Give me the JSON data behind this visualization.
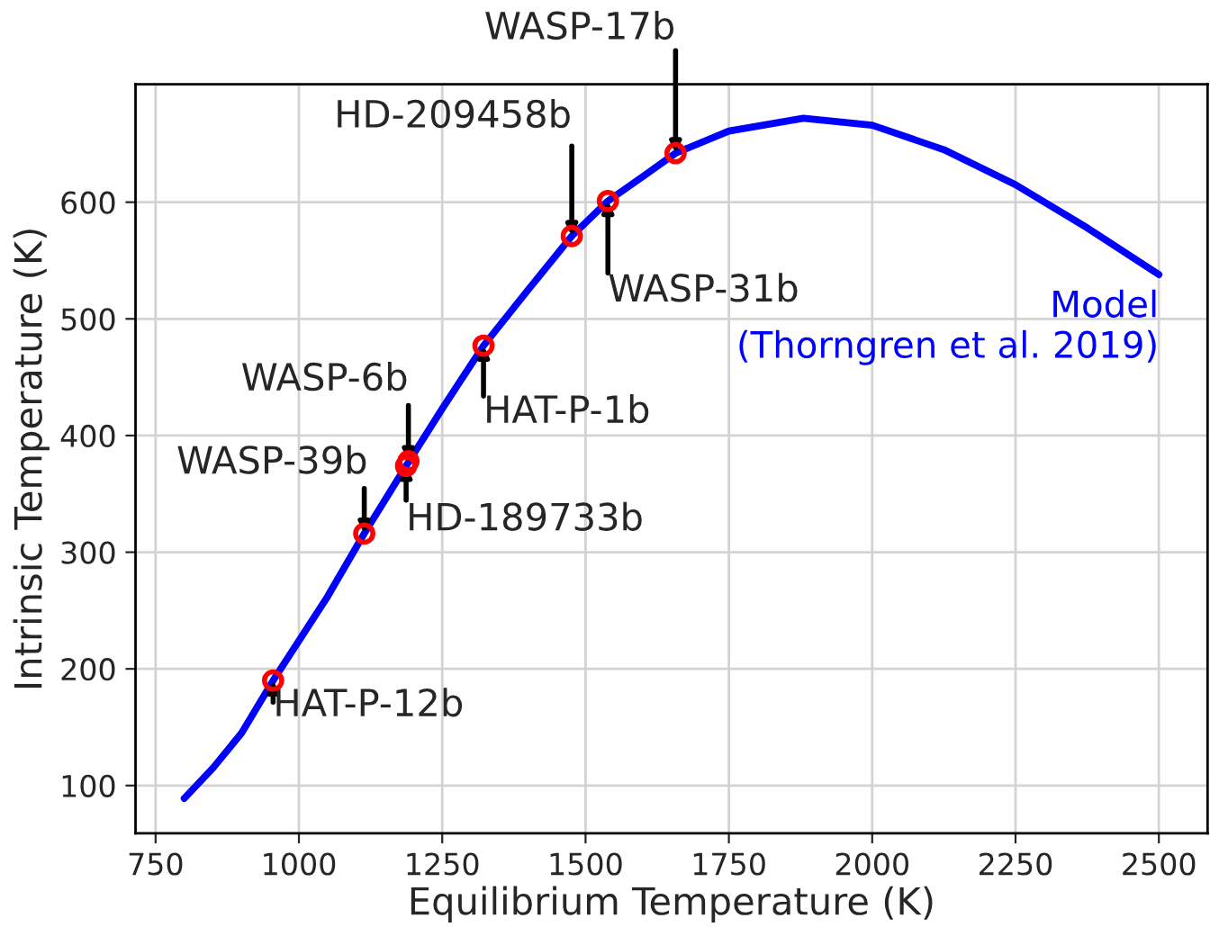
{
  "chart_data": {
    "type": "line",
    "xlabel": "Equilibrium Temperature (K)",
    "ylabel": "Intrinsic Temperature (K)",
    "xlim": [
      715,
      2585
    ],
    "ylim": [
      59,
      701
    ],
    "xticks": [
      750,
      1000,
      1250,
      1500,
      1750,
      2000,
      2250,
      2500
    ],
    "yticks": [
      100,
      200,
      300,
      400,
      500,
      600
    ],
    "grid": true,
    "series": [
      {
        "name": "Model\n(Thorngren et al. 2019)",
        "color": "#0000ff",
        "marker": "none",
        "x": [
          800,
          850,
          900,
          955,
          1050,
          1114,
          1187,
          1250,
          1322,
          1400,
          1476,
          1539,
          1600,
          1657,
          1750,
          1880,
          2000,
          2125,
          2250,
          2375,
          2500
        ],
        "values": [
          89,
          115,
          145,
          190,
          262,
          316,
          374,
          423,
          477,
          525,
          571,
          601,
          622,
          642,
          661,
          672,
          666,
          645,
          615,
          578,
          538
        ]
      },
      {
        "type": "scatter",
        "color": "#ff0000",
        "marker": "circle",
        "x": [
          955,
          1114,
          1187,
          1191,
          1322,
          1476,
          1539,
          1657
        ],
        "values": [
          190,
          316,
          374,
          378,
          477,
          571,
          601,
          642
        ]
      }
    ],
    "annotations": [
      {
        "text": "HAT-P-12b",
        "x": 955,
        "y": 190
      },
      {
        "text": "WASP-39b",
        "x": 1114,
        "y": 316
      },
      {
        "text": "HD-189733b",
        "x": 1187,
        "y": 374
      },
      {
        "text": "WASP-6b",
        "x": 1191,
        "y": 378
      },
      {
        "text": "HAT-P-1b",
        "x": 1322,
        "y": 477
      },
      {
        "text": "HD-209458b",
        "x": 1476,
        "y": 571
      },
      {
        "text": "WASP-31b",
        "x": 1539,
        "y": 601
      },
      {
        "text": "WASP-17b",
        "x": 1657,
        "y": 642
      }
    ]
  }
}
